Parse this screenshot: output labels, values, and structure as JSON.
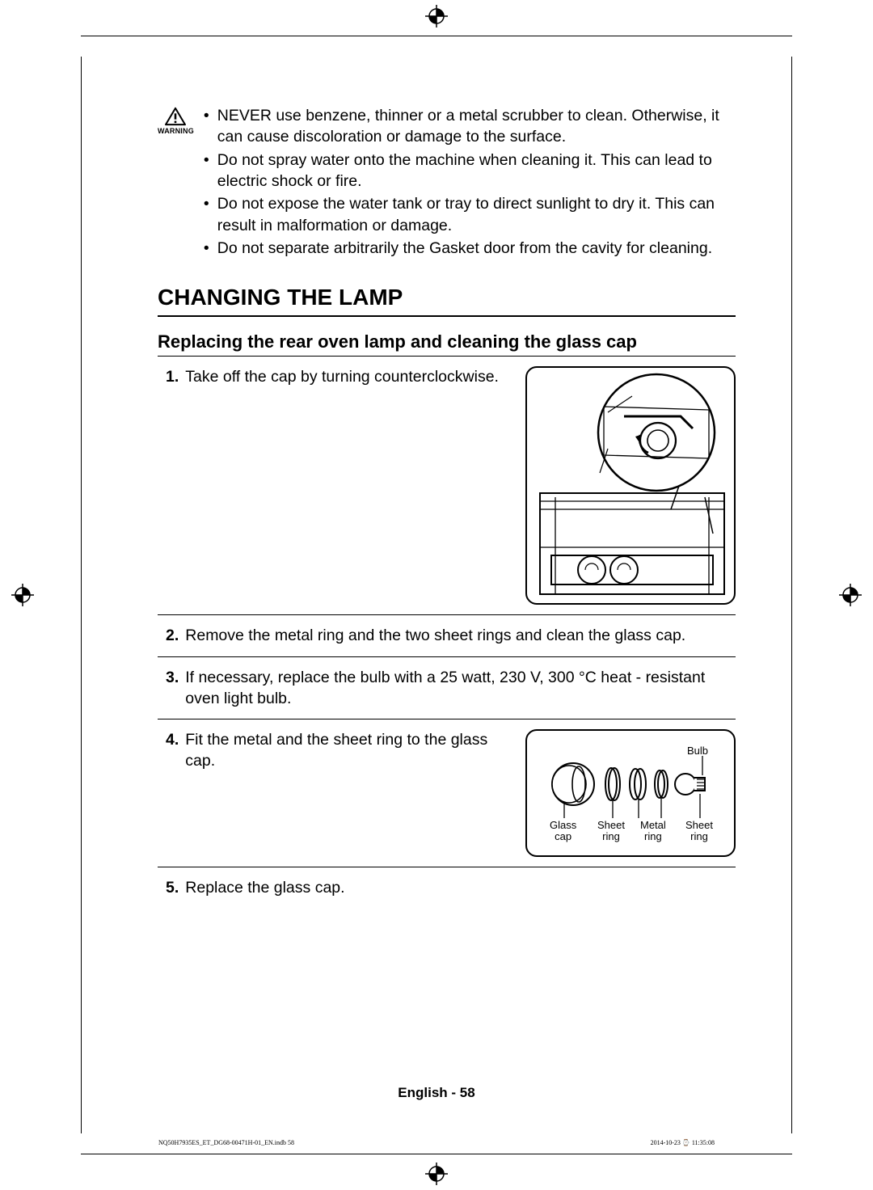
{
  "colors": {
    "text": "#000000",
    "background": "#ffffff",
    "rule": "#000000"
  },
  "warning": {
    "label": "WARNING",
    "items": [
      "NEVER use benzene, thinner or a metal scrubber to clean. Otherwise, it can cause discoloration or damage to the surface.",
      "Do not spray water onto the machine when cleaning it. This can lead to electric shock or fire.",
      "Do not expose the water tank or tray to direct sunlight to dry it. This can result in malformation or damage.",
      "Do not separate arbitrarily the Gasket door from the cavity for cleaning."
    ]
  },
  "section": {
    "title": "CHANGING THE LAMP",
    "subtitle": "Replacing the rear oven lamp and cleaning the glass cap",
    "steps": [
      {
        "num": "1.",
        "text": "Take off the cap by turning counterclockwise.",
        "figure": 1
      },
      {
        "num": "2.",
        "text": "Remove the metal ring and the two sheet rings and clean the glass cap."
      },
      {
        "num": "3.",
        "text": "If necessary, replace the bulb with a 25 watt, 230 V, 300 °C heat - resistant oven light bulb."
      },
      {
        "num": "4.",
        "text": "Fit the metal and the sheet ring to the glass cap.",
        "figure": 2
      },
      {
        "num": "5.",
        "text": "Replace the glass cap."
      }
    ]
  },
  "figure2": {
    "labels": {
      "bulb": "Bulb",
      "glass_cap": "Glass\ncap",
      "sheet_ring_1": "Sheet\nring",
      "metal_ring": "Metal\nring",
      "sheet_ring_2": "Sheet\nring"
    }
  },
  "footer": {
    "lang": "English",
    "sep": " - ",
    "page": "58"
  },
  "print_meta": {
    "file": "NQ50H7935ES_ET_DG68-00471H-01_EN.indb   58",
    "timestamp": "2014-10-23   ⌚ 11:35:08"
  }
}
